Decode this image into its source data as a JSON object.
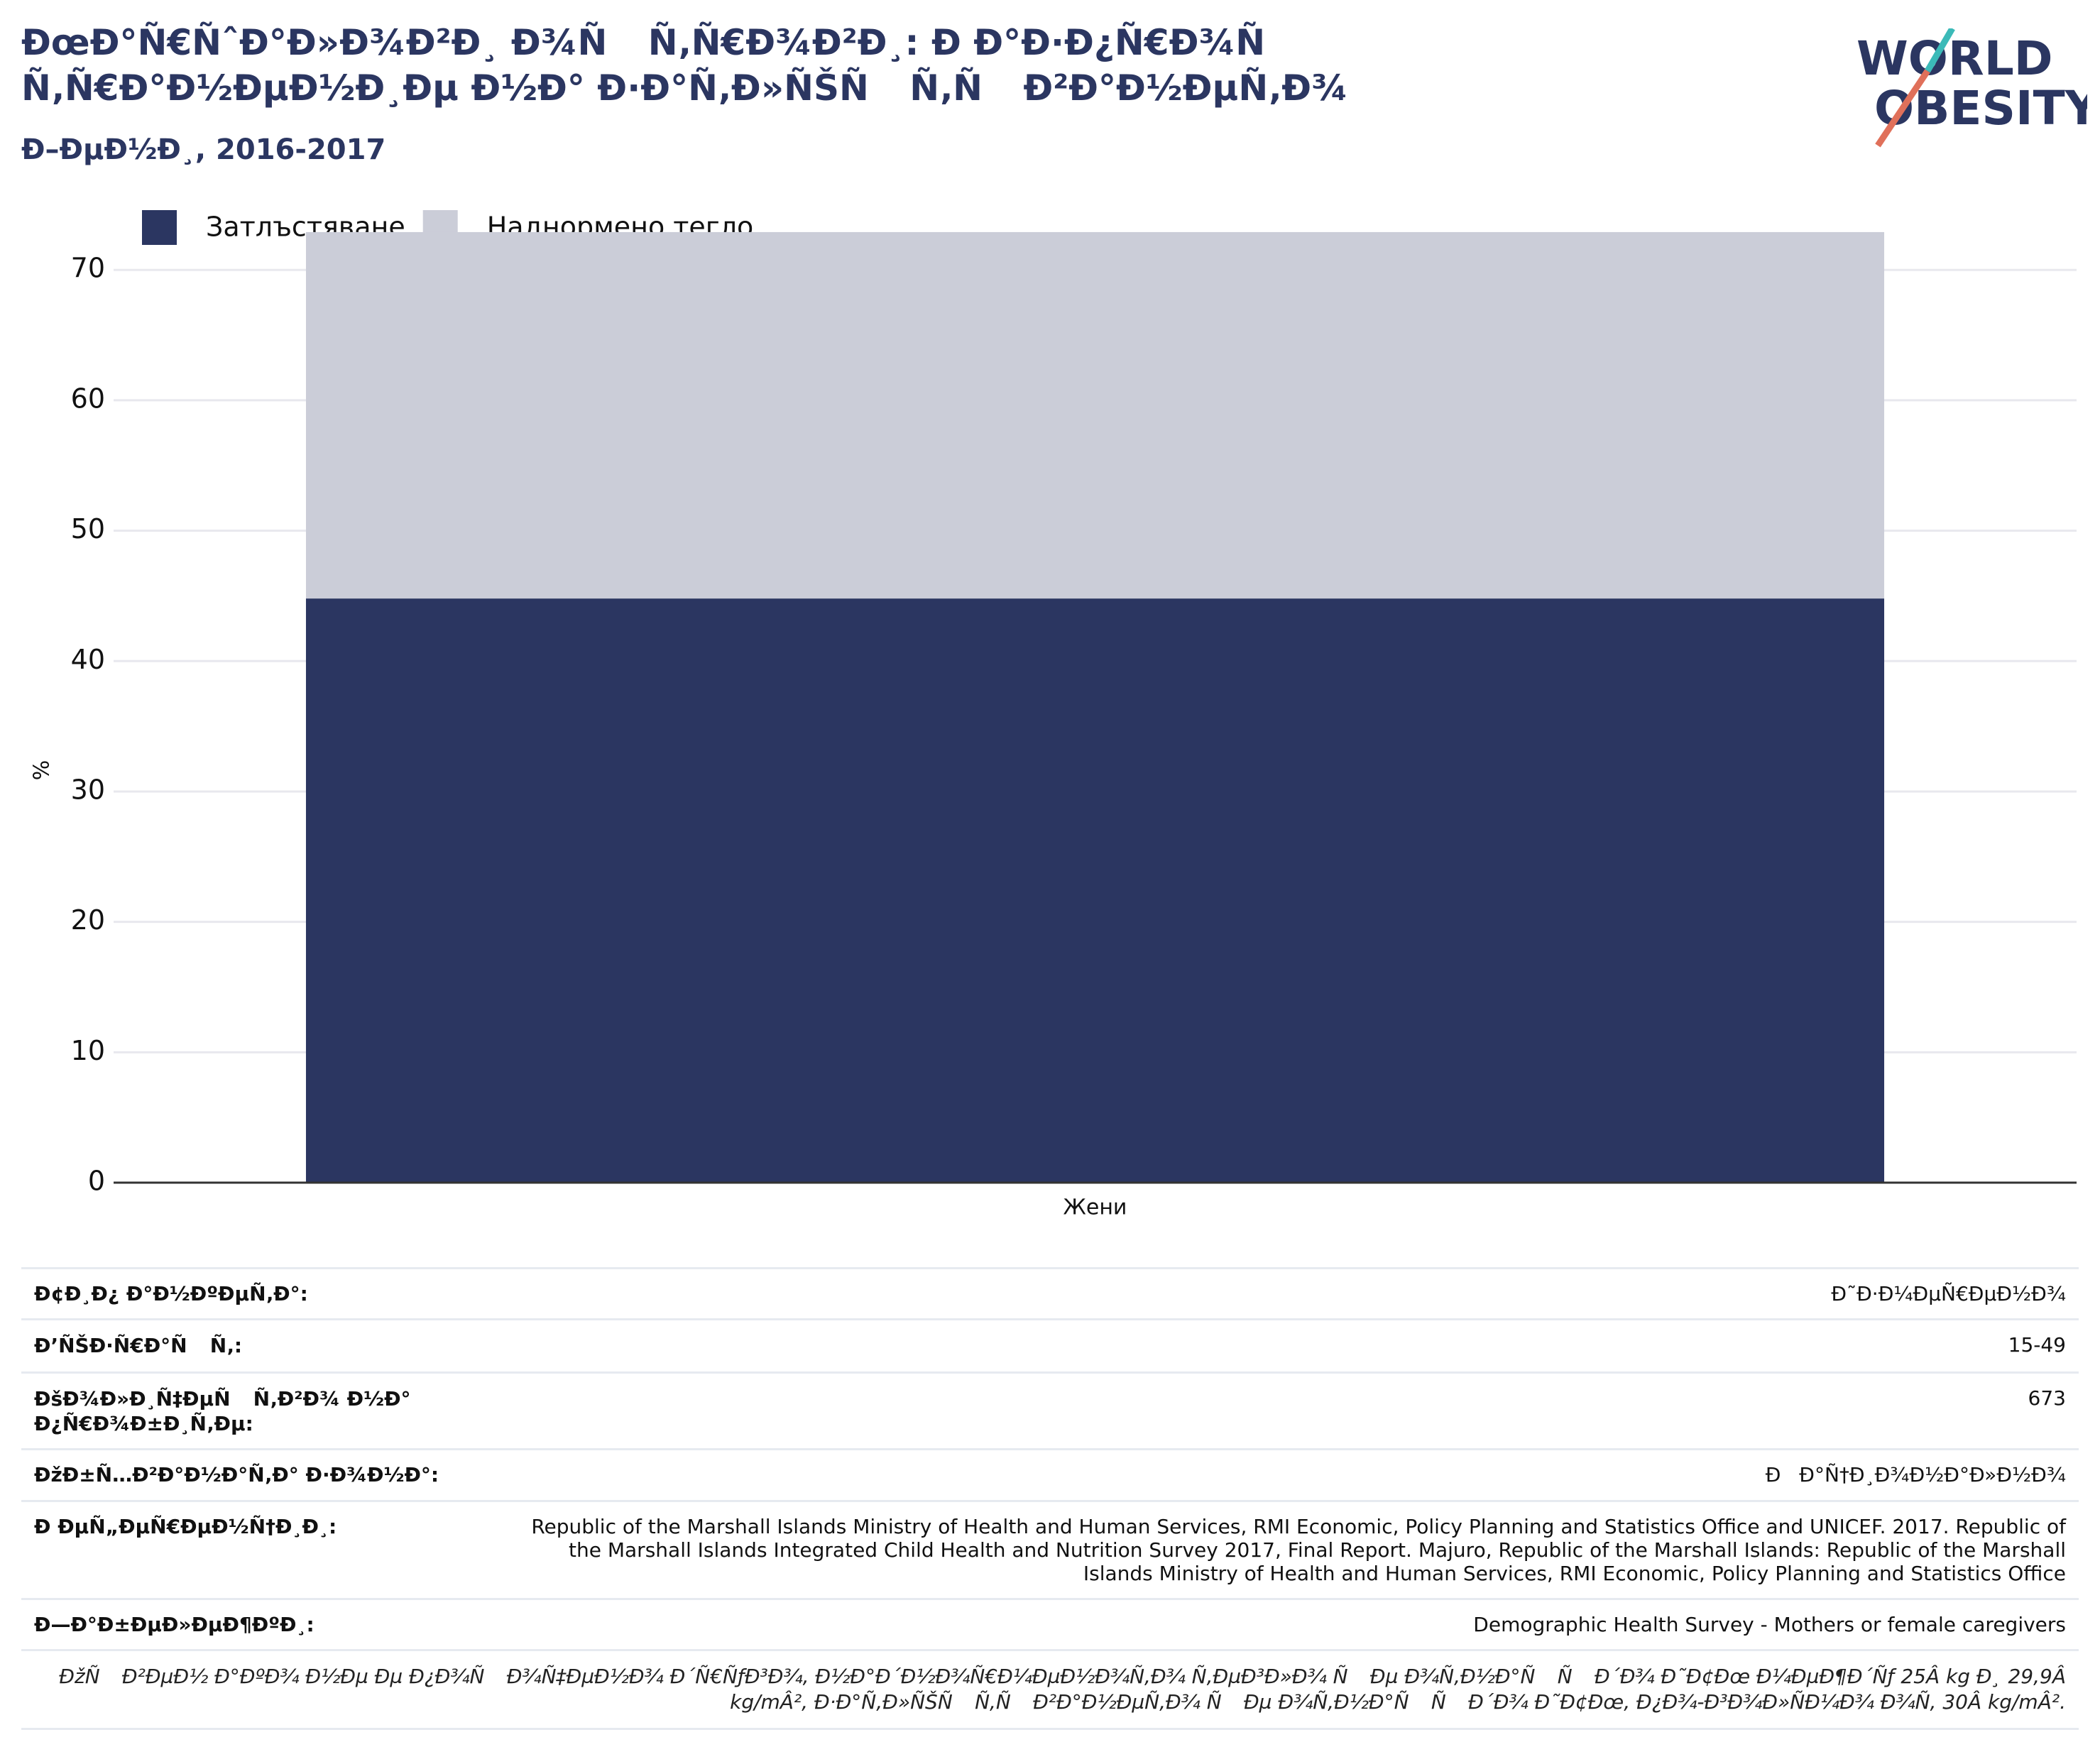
{
  "header": {
    "title": "ÐœÐ°Ñ€ÑˆÐ°Ð»Ð¾Ð²Ð¸ Ð¾Ñ Ñ‚Ñ€Ð¾Ð²Ð¸: Ð Ð°Ð·Ð¿Ñ€Ð¾Ñ Ñ‚Ñ€Ð°Ð½ÐµÐ½Ð¸Ðµ Ð½Ð° Ð·Ð°Ñ‚Ð»ÑŠÑ Ñ‚Ñ Ð²Ð°Ð½ÐµÑ‚Ð¾",
    "subtitle": "Ð–ÐµÐ½Ð¸, 2016-2017",
    "logo": [
      "WORLD",
      "OBESITY"
    ]
  },
  "chart_data": {
    "type": "stacked-bar",
    "y_label": "%",
    "categories": [
      "Жени"
    ],
    "series": [
      {
        "name": "Затлъстяване",
        "color": "#2b3661",
        "values": [
          44.8
        ]
      },
      {
        "name": "Наднормено тегло",
        "color": "#cbcdd8",
        "values": [
          28.1
        ]
      }
    ],
    "ylim": [
      0,
      76
    ],
    "yticks": [
      0,
      10,
      20,
      30,
      40,
      50,
      60,
      70
    ],
    "grid": true,
    "legend": "top-left"
  },
  "table": {
    "rows": [
      [
        "Ð¢Ð¸Ð¿ Ð°Ð½ÐºÐµÑ‚Ð°:",
        "Ð˜Ð·Ð¼ÐµÑ€ÐµÐ½Ð¾"
      ],
      [
        "Ð’ÑŠÐ·Ñ€Ð°Ñ Ñ‚:",
        "15-49"
      ],
      [
        "ÐšÐ¾Ð»Ð¸Ñ‡ÐµÑ Ñ‚Ð²Ð¾ Ð½Ð° Ð¿Ñ€Ð¾Ð±Ð¸Ñ‚Ðµ:",
        "673"
      ],
      [
        "ÐžÐ±Ñ…Ð²Ð°Ð½Ð°Ñ‚Ð° Ð·Ð¾Ð½Ð°:",
        "Ð Ð°Ñ†Ð¸Ð¾Ð½Ð°Ð»Ð½Ð¾"
      ],
      [
        "Ð ÐµÑ„ÐµÑ€ÐµÐ½Ñ†Ð¸Ð¸:",
        "Republic of the Marshall Islands Ministry of Health and Human Services, RMI Economic, Policy Planning and Statistics Office and UNICEF. 2017. Republic of the Marshall Islands Integrated Child Health and Nutrition Survey 2017, Final Report. Majuro, Republic of the Marshall Islands: Republic of the Marshall Islands Ministry of Health and Human Services, RMI Economic, Policy Planning and Statistics Office"
      ],
      [
        "Ð—Ð°Ð±ÐµÐ»ÐµÐ¶ÐºÐ¸:",
        "Demographic Health Survey - Mothers or female caregivers"
      ]
    ],
    "note": "ÐžÑ Ð²ÐµÐ½ Ð°ÐºÐ¾ Ð½Ðµ Ðµ Ð¿Ð¾Ñ Ð¾Ñ‡ÐµÐ½Ð¾ Ð´Ñ€ÑƒÐ³Ð¾, Ð½Ð°Ð´Ð½Ð¾Ñ€Ð¼ÐµÐ½Ð¾Ñ‚Ð¾ Ñ‚ÐµÐ³Ð»Ð¾ Ñ Ðµ Ð¾Ñ‚Ð½Ð°Ñ Ñ Ð´Ð¾ Ð˜Ð¢Ðœ Ð¼ÐµÐ¶Ð´Ñƒ 25Â kg Ð¸ 29,9Â kg/mÂ², Ð·Ð°Ñ‚Ð»ÑŠÑ Ñ‚Ñ Ð²Ð°Ð½ÐµÑ‚Ð¾ Ñ Ðµ Ð¾Ñ‚Ð½Ð°Ñ Ñ Ð´Ð¾ Ð˜Ð¢Ðœ, Ð¿Ð¾-Ð³Ð¾Ð»ÑÐ¼Ð¾ Ð¾Ñ‚ 30Â kg/mÂ²."
  }
}
